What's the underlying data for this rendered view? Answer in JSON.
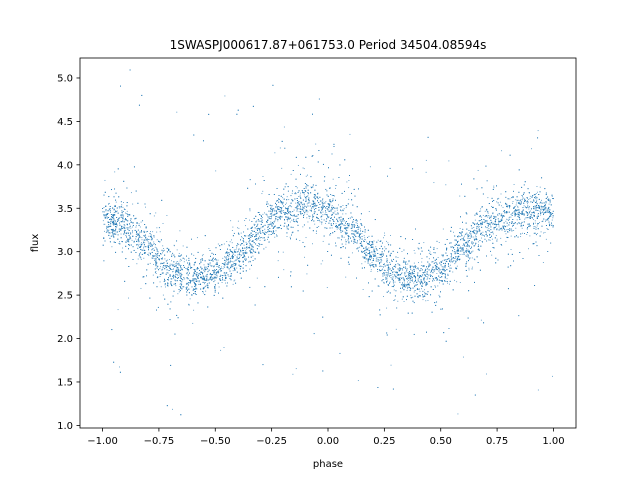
{
  "chart_data": {
    "type": "scatter",
    "title": "1SWASPJ000617.87+061753.0 Period 34504.08594s",
    "xlabel": "phase",
    "ylabel": "flux",
    "xlim": [
      -1.1,
      1.1
    ],
    "ylim": [
      0.97,
      5.23
    ],
    "xticks": [
      -1.0,
      -0.75,
      -0.5,
      -0.25,
      0.0,
      0.25,
      0.5,
      0.75,
      1.0
    ],
    "xtick_labels": [
      "−1.00",
      "−0.75",
      "−0.50",
      "−0.25",
      "0.00",
      "0.25",
      "0.50",
      "0.75",
      "1.00"
    ],
    "yticks": [
      1.0,
      1.5,
      2.0,
      2.5,
      3.0,
      3.5,
      4.0,
      4.5,
      5.0
    ],
    "ytick_labels": [
      "1.0",
      "1.5",
      "2.0",
      "2.5",
      "3.0",
      "3.5",
      "4.0",
      "4.5",
      "5.0"
    ],
    "grid": false,
    "point_color": "#1f77b4",
    "series": [
      {
        "x": [
          -1.0,
          -0.9,
          -0.8,
          -0.7,
          -0.6,
          -0.5,
          -0.4,
          -0.3,
          -0.2,
          -0.1,
          0.0,
          0.1,
          0.2,
          0.3,
          0.4,
          0.5,
          0.6,
          0.7,
          0.8,
          0.9,
          1.0
        ],
        "values": [
          3.4,
          3.3,
          3.05,
          2.8,
          2.7,
          2.75,
          2.95,
          3.25,
          3.45,
          3.55,
          3.45,
          3.25,
          2.95,
          2.75,
          2.7,
          2.78,
          3.05,
          3.3,
          3.4,
          3.48,
          3.45
        ]
      }
    ]
  }
}
